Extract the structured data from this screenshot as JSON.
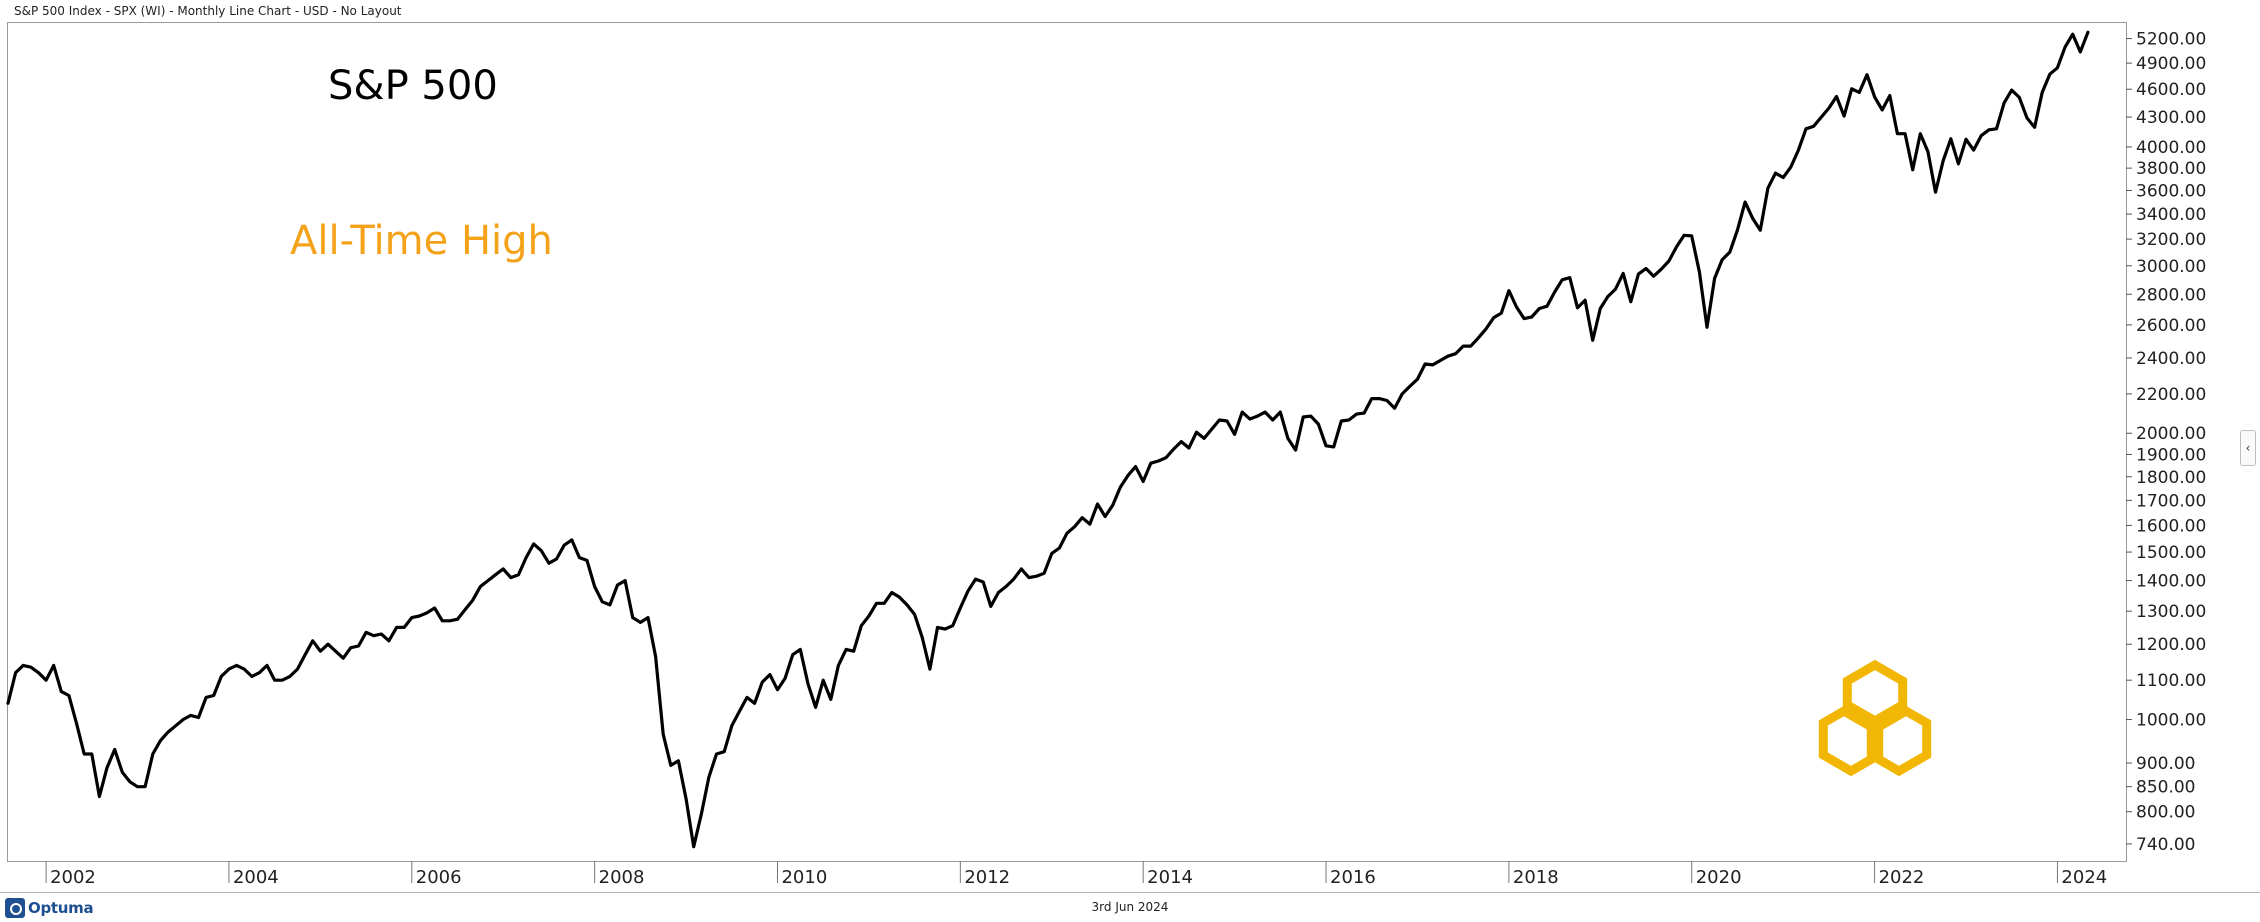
{
  "header": {
    "title": "S&P 500 Index - SPX (WI) - Monthly Line Chart - USD - No Layout"
  },
  "annotations": {
    "main_label": "S&P 500",
    "sub_label": "All-Time High",
    "sub_label_color": "#f5a21b"
  },
  "footer": {
    "brand": "Optuma",
    "date": "3rd Jun 2024"
  },
  "colors": {
    "line": "#000000",
    "logo": "#f2b705",
    "brand": "#1d4f91"
  },
  "icons": {
    "logo": "hexagon-knot-icon",
    "brand": "optuma-logo-icon",
    "collapse": "chevron-left-icon"
  },
  "chart_data": {
    "type": "line",
    "title": "S&P 500",
    "y_scale": "log",
    "ylim": [
      710,
      5400
    ],
    "xlim": [
      "2001-08",
      "2024-10"
    ],
    "grid": false,
    "y_ticks": [
      740,
      800,
      850,
      900,
      1000,
      1100,
      1200,
      1300,
      1400,
      1500,
      1600,
      1700,
      1800,
      1900,
      2000,
      2200,
      2400,
      2600,
      2800,
      3000,
      3200,
      3400,
      3600,
      3800,
      4000,
      4300,
      4600,
      4900,
      5200
    ],
    "y_tick_labels": [
      "740.00",
      "800.00",
      "850.00",
      "900.00",
      "1000.00",
      "1100.00",
      "1200.00",
      "1300.00",
      "1400.00",
      "1500.00",
      "1600.00",
      "1700.00",
      "1800.00",
      "1900.00",
      "2000.00",
      "2200.00",
      "2400.00",
      "2600.00",
      "2800.00",
      "3000.00",
      "3200.00",
      "3400.00",
      "3600.00",
      "3800.00",
      "4000.00",
      "4300.00",
      "4600.00",
      "4900.00",
      "5200.00"
    ],
    "x_ticks": [
      "2002",
      "2004",
      "2006",
      "2008",
      "2010",
      "2012",
      "2014",
      "2016",
      "2018",
      "2020",
      "2022",
      "2024"
    ],
    "series": [
      {
        "name": "SPX",
        "points": [
          [
            "2001-08",
            1040
          ],
          [
            "2001-09",
            1120
          ],
          [
            "2001-10",
            1140
          ],
          [
            "2001-11",
            1135
          ],
          [
            "2001-12",
            1120
          ],
          [
            "2002-01",
            1100
          ],
          [
            "2002-02",
            1140
          ],
          [
            "2002-03",
            1070
          ],
          [
            "2002-04",
            1060
          ],
          [
            "2002-05",
            990
          ],
          [
            "2002-06",
            920
          ],
          [
            "2002-07",
            920
          ],
          [
            "2002-08",
            830
          ],
          [
            "2002-09",
            890
          ],
          [
            "2002-10",
            930
          ],
          [
            "2002-11",
            880
          ],
          [
            "2002-12",
            860
          ],
          [
            "2003-01",
            850
          ],
          [
            "2003-02",
            850
          ],
          [
            "2003-03",
            920
          ],
          [
            "2003-04",
            950
          ],
          [
            "2003-05",
            970
          ],
          [
            "2003-06",
            985
          ],
          [
            "2003-07",
            1000
          ],
          [
            "2003-08",
            1010
          ],
          [
            "2003-09",
            1005
          ],
          [
            "2003-10",
            1055
          ],
          [
            "2003-11",
            1060
          ],
          [
            "2003-12",
            1110
          ],
          [
            "2004-01",
            1130
          ],
          [
            "2004-02",
            1140
          ],
          [
            "2004-03",
            1130
          ],
          [
            "2004-04",
            1110
          ],
          [
            "2004-05",
            1120
          ],
          [
            "2004-06",
            1140
          ],
          [
            "2004-07",
            1100
          ],
          [
            "2004-08",
            1100
          ],
          [
            "2004-09",
            1110
          ],
          [
            "2004-10",
            1130
          ],
          [
            "2004-11",
            1170
          ],
          [
            "2004-12",
            1210
          ],
          [
            "2005-01",
            1180
          ],
          [
            "2005-02",
            1200
          ],
          [
            "2005-03",
            1180
          ],
          [
            "2005-04",
            1160
          ],
          [
            "2005-05",
            1190
          ],
          [
            "2005-06",
            1195
          ],
          [
            "2005-07",
            1235
          ],
          [
            "2005-08",
            1225
          ],
          [
            "2005-09",
            1230
          ],
          [
            "2005-10",
            1210
          ],
          [
            "2005-11",
            1250
          ],
          [
            "2005-12",
            1250
          ],
          [
            "2006-01",
            1280
          ],
          [
            "2006-02",
            1285
          ],
          [
            "2006-03",
            1295
          ],
          [
            "2006-04",
            1310
          ],
          [
            "2006-05",
            1270
          ],
          [
            "2006-06",
            1270
          ],
          [
            "2006-07",
            1275
          ],
          [
            "2006-08",
            1305
          ],
          [
            "2006-09",
            1335
          ],
          [
            "2006-10",
            1380
          ],
          [
            "2006-11",
            1400
          ],
          [
            "2006-12",
            1420
          ],
          [
            "2007-01",
            1440
          ],
          [
            "2007-02",
            1410
          ],
          [
            "2007-03",
            1420
          ],
          [
            "2007-04",
            1480
          ],
          [
            "2007-05",
            1530
          ],
          [
            "2007-06",
            1505
          ],
          [
            "2007-07",
            1460
          ],
          [
            "2007-08",
            1475
          ],
          [
            "2007-09",
            1525
          ],
          [
            "2007-10",
            1545
          ],
          [
            "2007-11",
            1480
          ],
          [
            "2007-12",
            1470
          ],
          [
            "2008-01",
            1380
          ],
          [
            "2008-02",
            1330
          ],
          [
            "2008-03",
            1320
          ],
          [
            "2008-04",
            1385
          ],
          [
            "2008-05",
            1400
          ],
          [
            "2008-06",
            1280
          ],
          [
            "2008-07",
            1265
          ],
          [
            "2008-08",
            1280
          ],
          [
            "2008-09",
            1165
          ],
          [
            "2008-10",
            965
          ],
          [
            "2008-11",
            895
          ],
          [
            "2008-12",
            905
          ],
          [
            "2009-01",
            825
          ],
          [
            "2009-02",
            735
          ],
          [
            "2009-03",
            795
          ],
          [
            "2009-04",
            870
          ],
          [
            "2009-05",
            920
          ],
          [
            "2009-06",
            925
          ],
          [
            "2009-07",
            985
          ],
          [
            "2009-08",
            1020
          ],
          [
            "2009-09",
            1055
          ],
          [
            "2009-10",
            1040
          ],
          [
            "2009-11",
            1095
          ],
          [
            "2009-12",
            1115
          ],
          [
            "2010-01",
            1075
          ],
          [
            "2010-02",
            1105
          ],
          [
            "2010-03",
            1170
          ],
          [
            "2010-04",
            1185
          ],
          [
            "2010-05",
            1090
          ],
          [
            "2010-06",
            1030
          ],
          [
            "2010-07",
            1100
          ],
          [
            "2010-08",
            1050
          ],
          [
            "2010-09",
            1140
          ],
          [
            "2010-10",
            1185
          ],
          [
            "2010-11",
            1180
          ],
          [
            "2010-12",
            1255
          ],
          [
            "2011-01",
            1285
          ],
          [
            "2011-02",
            1325
          ],
          [
            "2011-03",
            1325
          ],
          [
            "2011-04",
            1360
          ],
          [
            "2011-05",
            1345
          ],
          [
            "2011-06",
            1320
          ],
          [
            "2011-07",
            1290
          ],
          [
            "2011-08",
            1220
          ],
          [
            "2011-09",
            1130
          ],
          [
            "2011-10",
            1250
          ],
          [
            "2011-11",
            1245
          ],
          [
            "2011-12",
            1255
          ],
          [
            "2012-01",
            1310
          ],
          [
            "2012-02",
            1365
          ],
          [
            "2012-03",
            1405
          ],
          [
            "2012-04",
            1395
          ],
          [
            "2012-05",
            1315
          ],
          [
            "2012-06",
            1360
          ],
          [
            "2012-07",
            1380
          ],
          [
            "2012-08",
            1405
          ],
          [
            "2012-09",
            1440
          ],
          [
            "2012-10",
            1410
          ],
          [
            "2012-11",
            1415
          ],
          [
            "2012-12",
            1425
          ],
          [
            "2013-01",
            1495
          ],
          [
            "2013-02",
            1515
          ],
          [
            "2013-03",
            1570
          ],
          [
            "2013-04",
            1595
          ],
          [
            "2013-05",
            1630
          ],
          [
            "2013-06",
            1605
          ],
          [
            "2013-07",
            1685
          ],
          [
            "2013-08",
            1635
          ],
          [
            "2013-09",
            1680
          ],
          [
            "2013-10",
            1755
          ],
          [
            "2013-11",
            1805
          ],
          [
            "2013-12",
            1845
          ],
          [
            "2014-01",
            1780
          ],
          [
            "2014-02",
            1860
          ],
          [
            "2014-03",
            1870
          ],
          [
            "2014-04",
            1885
          ],
          [
            "2014-05",
            1925
          ],
          [
            "2014-06",
            1960
          ],
          [
            "2014-07",
            1930
          ],
          [
            "2014-08",
            2005
          ],
          [
            "2014-09",
            1975
          ],
          [
            "2014-10",
            2020
          ],
          [
            "2014-11",
            2065
          ],
          [
            "2014-12",
            2060
          ],
          [
            "2015-01",
            1995
          ],
          [
            "2015-02",
            2105
          ],
          [
            "2015-03",
            2070
          ],
          [
            "2015-04",
            2085
          ],
          [
            "2015-05",
            2105
          ],
          [
            "2015-06",
            2065
          ],
          [
            "2015-07",
            2105
          ],
          [
            "2015-08",
            1975
          ],
          [
            "2015-09",
            1920
          ],
          [
            "2015-10",
            2080
          ],
          [
            "2015-11",
            2085
          ],
          [
            "2015-12",
            2045
          ],
          [
            "2016-01",
            1940
          ],
          [
            "2016-02",
            1935
          ],
          [
            "2016-03",
            2060
          ],
          [
            "2016-04",
            2065
          ],
          [
            "2016-05",
            2095
          ],
          [
            "2016-06",
            2100
          ],
          [
            "2016-07",
            2175
          ],
          [
            "2016-08",
            2175
          ],
          [
            "2016-09",
            2165
          ],
          [
            "2016-10",
            2125
          ],
          [
            "2016-11",
            2200
          ],
          [
            "2016-12",
            2240
          ],
          [
            "2017-01",
            2280
          ],
          [
            "2017-02",
            2365
          ],
          [
            "2017-03",
            2360
          ],
          [
            "2017-04",
            2385
          ],
          [
            "2017-05",
            2410
          ],
          [
            "2017-06",
            2425
          ],
          [
            "2017-07",
            2470
          ],
          [
            "2017-08",
            2470
          ],
          [
            "2017-09",
            2520
          ],
          [
            "2017-10",
            2575
          ],
          [
            "2017-11",
            2645
          ],
          [
            "2017-12",
            2675
          ],
          [
            "2018-01",
            2825
          ],
          [
            "2018-02",
            2715
          ],
          [
            "2018-03",
            2640
          ],
          [
            "2018-04",
            2650
          ],
          [
            "2018-05",
            2705
          ],
          [
            "2018-06",
            2720
          ],
          [
            "2018-07",
            2815
          ],
          [
            "2018-08",
            2900
          ],
          [
            "2018-09",
            2915
          ],
          [
            "2018-10",
            2710
          ],
          [
            "2018-11",
            2760
          ],
          [
            "2018-12",
            2505
          ],
          [
            "2019-01",
            2705
          ],
          [
            "2019-02",
            2785
          ],
          [
            "2019-03",
            2835
          ],
          [
            "2019-04",
            2945
          ],
          [
            "2019-05",
            2750
          ],
          [
            "2019-06",
            2940
          ],
          [
            "2019-07",
            2980
          ],
          [
            "2019-08",
            2925
          ],
          [
            "2019-09",
            2975
          ],
          [
            "2019-10",
            3035
          ],
          [
            "2019-11",
            3140
          ],
          [
            "2019-12",
            3230
          ],
          [
            "2020-01",
            3225
          ],
          [
            "2020-02",
            2955
          ],
          [
            "2020-03",
            2585
          ],
          [
            "2020-04",
            2910
          ],
          [
            "2020-05",
            3045
          ],
          [
            "2020-06",
            3100
          ],
          [
            "2020-07",
            3270
          ],
          [
            "2020-08",
            3500
          ],
          [
            "2020-09",
            3365
          ],
          [
            "2020-10",
            3270
          ],
          [
            "2020-11",
            3620
          ],
          [
            "2020-12",
            3755
          ],
          [
            "2021-01",
            3715
          ],
          [
            "2021-02",
            3810
          ],
          [
            "2021-03",
            3970
          ],
          [
            "2021-04",
            4180
          ],
          [
            "2021-05",
            4205
          ],
          [
            "2021-06",
            4300
          ],
          [
            "2021-07",
            4395
          ],
          [
            "2021-08",
            4520
          ],
          [
            "2021-09",
            4310
          ],
          [
            "2021-10",
            4605
          ],
          [
            "2021-11",
            4565
          ],
          [
            "2021-12",
            4765
          ],
          [
            "2022-01",
            4515
          ],
          [
            "2022-02",
            4375
          ],
          [
            "2022-03",
            4530
          ],
          [
            "2022-04",
            4130
          ],
          [
            "2022-05",
            4130
          ],
          [
            "2022-06",
            3785
          ],
          [
            "2022-07",
            4130
          ],
          [
            "2022-08",
            3955
          ],
          [
            "2022-09",
            3585
          ],
          [
            "2022-10",
            3870
          ],
          [
            "2022-11",
            4080
          ],
          [
            "2022-12",
            3840
          ],
          [
            "2023-01",
            4075
          ],
          [
            "2023-02",
            3970
          ],
          [
            "2023-03",
            4110
          ],
          [
            "2023-04",
            4170
          ],
          [
            "2023-05",
            4180
          ],
          [
            "2023-06",
            4450
          ],
          [
            "2023-07",
            4590
          ],
          [
            "2023-08",
            4510
          ],
          [
            "2023-09",
            4290
          ],
          [
            "2023-10",
            4195
          ],
          [
            "2023-11",
            4565
          ],
          [
            "2023-12",
            4770
          ],
          [
            "2024-01",
            4845
          ],
          [
            "2024-02",
            5095
          ],
          [
            "2024-03",
            5255
          ],
          [
            "2024-04",
            5035
          ],
          [
            "2024-05",
            5280
          ]
        ]
      }
    ]
  }
}
